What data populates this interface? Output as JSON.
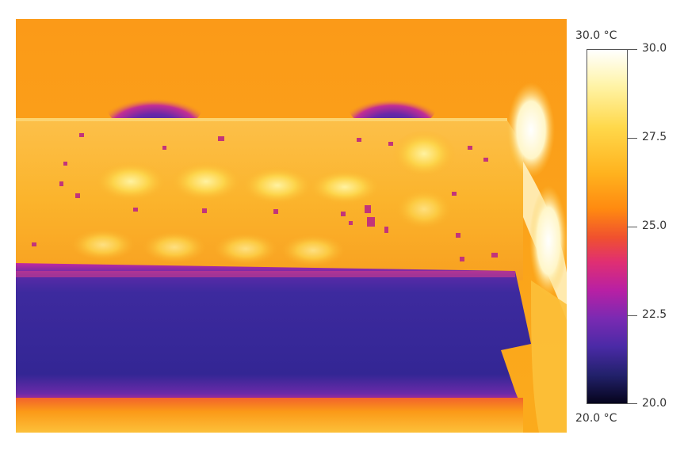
{
  "image": {
    "description_name": "thermal-camera-image"
  },
  "legend": {
    "max_label": "30.0 °C",
    "min_label": "20.0 °C",
    "ticks": [
      "30.0",
      "27.5",
      "25.0",
      "22.5",
      "20.0"
    ],
    "palette": [
      "#ffffff",
      "#fff4a8",
      "#ffd84a",
      "#ffb21e",
      "#ff8a10",
      "#f0512e",
      "#e02f72",
      "#b820a4",
      "#7a2ab2",
      "#4a2aa6",
      "#22216b",
      "#06041c"
    ]
  }
}
